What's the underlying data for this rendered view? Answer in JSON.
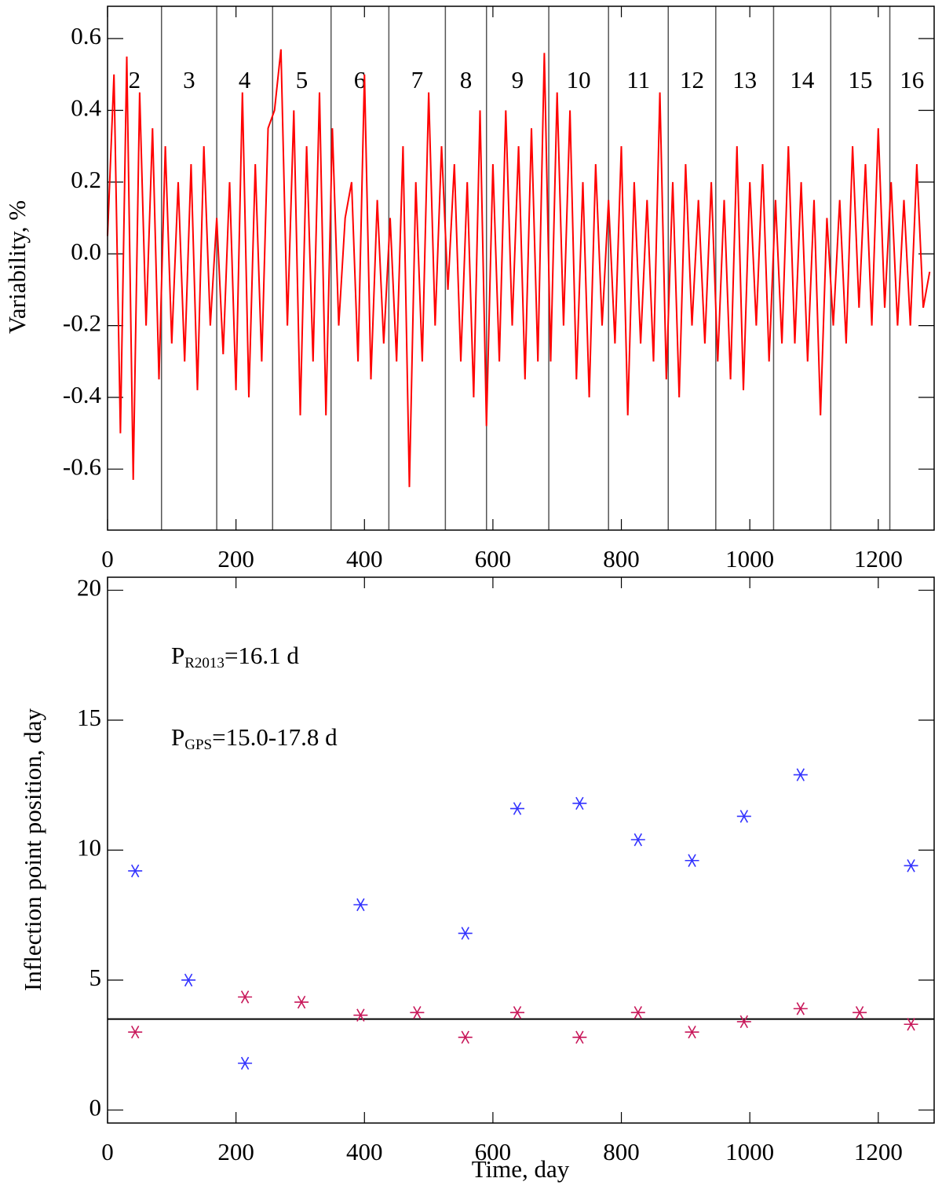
{
  "chart_data": [
    {
      "type": "line",
      "y_label": "Variability, %",
      "xlim": [
        0,
        1287
      ],
      "ylim": [
        -0.77,
        0.69
      ],
      "xticks": [
        0,
        200,
        400,
        600,
        800,
        1000,
        1200
      ],
      "yticks": [
        -0.6,
        -0.4,
        -0.2,
        {
          "value": 0,
          "label": "0.0"
        },
        0.2,
        0.4,
        0.6
      ],
      "dividers": [
        84,
        170,
        257,
        348,
        438,
        526,
        590,
        687,
        780,
        873,
        947,
        1037,
        1126,
        1218
      ],
      "segment_labels": [
        "2",
        "3",
        "4",
        "5",
        "6",
        "7",
        "8",
        "9",
        "10",
        "11",
        "12",
        "13",
        "14",
        "15",
        "16"
      ],
      "x": [
        0,
        10,
        20,
        30,
        40,
        50,
        60,
        70,
        80,
        90,
        100,
        110,
        120,
        130,
        140,
        150,
        160,
        170,
        180,
        190,
        200,
        210,
        220,
        230,
        240,
        250,
        260,
        270,
        280,
        290,
        300,
        310,
        320,
        330,
        340,
        350,
        360,
        370,
        380,
        390,
        400,
        410,
        420,
        430,
        440,
        450,
        460,
        470,
        480,
        490,
        500,
        510,
        520,
        530,
        540,
        550,
        560,
        570,
        580,
        590,
        600,
        610,
        620,
        630,
        640,
        650,
        660,
        670,
        680,
        690,
        700,
        710,
        720,
        730,
        740,
        750,
        760,
        770,
        780,
        790,
        800,
        810,
        820,
        830,
        840,
        850,
        860,
        870,
        880,
        890,
        900,
        910,
        920,
        930,
        940,
        950,
        960,
        970,
        980,
        990,
        1000,
        1010,
        1020,
        1030,
        1040,
        1050,
        1060,
        1070,
        1080,
        1090,
        1100,
        1110,
        1120,
        1130,
        1140,
        1150,
        1160,
        1170,
        1180,
        1190,
        1200,
        1210,
        1220,
        1230,
        1240,
        1250,
        1260,
        1270,
        1280
      ],
      "series": [
        {
          "color": "#ff0000",
          "values": [
            0.05,
            0.5,
            -0.5,
            0.55,
            -0.63,
            0.45,
            -0.2,
            0.35,
            -0.35,
            0.3,
            -0.25,
            0.2,
            -0.3,
            0.25,
            -0.38,
            0.3,
            -0.2,
            0.1,
            -0.28,
            0.2,
            -0.38,
            0.45,
            -0.4,
            0.25,
            -0.3,
            0.35,
            0.4,
            0.57,
            -0.2,
            0.4,
            -0.45,
            0.3,
            -0.3,
            0.45,
            -0.45,
            0.35,
            -0.2,
            0.1,
            0.2,
            -0.3,
            0.5,
            -0.35,
            0.15,
            -0.25,
            0.1,
            -0.3,
            0.3,
            -0.65,
            0.2,
            -0.3,
            0.45,
            -0.2,
            0.3,
            -0.1,
            0.25,
            -0.3,
            0.2,
            -0.4,
            0.4,
            -0.48,
            0.25,
            -0.3,
            0.4,
            -0.2,
            0.3,
            -0.35,
            0.35,
            -0.3,
            0.56,
            -0.3,
            0.45,
            -0.2,
            0.4,
            -0.35,
            0.2,
            -0.4,
            0.25,
            -0.2,
            0.15,
            -0.25,
            0.3,
            -0.45,
            0.2,
            -0.25,
            0.15,
            -0.3,
            0.45,
            -0.35,
            0.2,
            -0.4,
            0.25,
            -0.2,
            0.15,
            -0.25,
            0.2,
            -0.3,
            0.15,
            -0.35,
            0.3,
            -0.38,
            0.2,
            -0.2,
            0.25,
            -0.3,
            0.15,
            -0.25,
            0.3,
            -0.25,
            0.2,
            -0.3,
            0.15,
            -0.45,
            0.1,
            -0.2,
            0.15,
            -0.25,
            0.3,
            -0.15,
            0.25,
            -0.2,
            0.35,
            -0.15,
            0.2,
            -0.2,
            0.15,
            -0.2,
            0.25,
            -0.15,
            -0.05
          ]
        }
      ]
    },
    {
      "type": "scatter",
      "x_label": "Time, day",
      "y_label": "Inflection point position, day",
      "xlim": [
        0,
        1287
      ],
      "ylim": [
        -0.5,
        20.5
      ],
      "xticks": [
        0,
        200,
        400,
        600,
        800,
        1000,
        1200
      ],
      "yticks": [
        0,
        5,
        10,
        15,
        20
      ],
      "hlines": [
        3.5
      ],
      "annotations": [
        {
          "main": "P",
          "sub": "R2013",
          "rest": "=16.1 d"
        },
        {
          "main": "P",
          "sub": "GPS",
          "rest": "=15.0-17.8 d"
        }
      ],
      "series": [
        {
          "color": "#3333ff",
          "x": [
            43,
            126,
            214,
            394,
            557,
            638,
            735,
            826,
            910,
            991,
            1079,
            1251
          ],
          "values": [
            9.2,
            5.0,
            1.8,
            7.9,
            6.8,
            11.6,
            11.8,
            10.4,
            9.6,
            11.3,
            12.9,
            9.4
          ]
        },
        {
          "color": "#c8185a",
          "x": [
            43,
            214,
            302,
            394,
            482,
            557,
            638,
            735,
            826,
            910,
            991,
            1079,
            1171,
            1251
          ],
          "values": [
            3.0,
            4.35,
            4.15,
            3.65,
            3.75,
            2.8,
            3.75,
            2.8,
            3.75,
            3.0,
            3.4,
            3.9,
            3.75,
            3.3
          ]
        }
      ]
    }
  ]
}
